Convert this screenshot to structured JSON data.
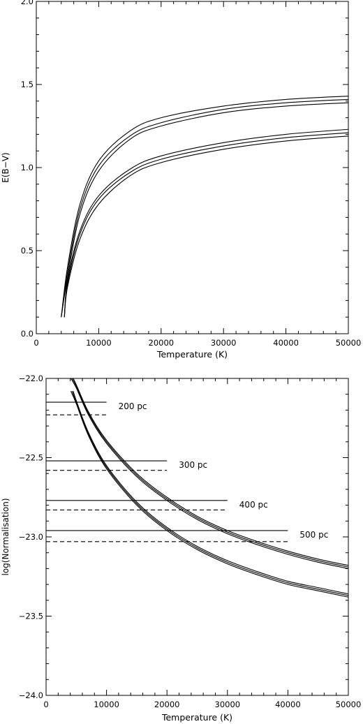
{
  "chart_data": [
    {
      "type": "line",
      "xlabel": "Temperature (K)",
      "ylabel": "E(B−V)",
      "xlim": [
        0,
        50000
      ],
      "ylim": [
        0,
        2.0
      ],
      "xticks": [
        0,
        10000,
        20000,
        30000,
        40000,
        50000
      ],
      "yticks": [
        0.0,
        0.5,
        1.0,
        1.5,
        2.0
      ],
      "xtick_labels": [
        "0",
        "10000",
        "20000",
        "30000",
        "40000",
        "50000"
      ],
      "ytick_labels": [
        "0.0",
        "0.5",
        "1.0",
        "1.5",
        "2.0"
      ],
      "grid": false,
      "series": [
        {
          "style": "solid",
          "x": [
            4000,
            5000,
            7000,
            10000,
            15000,
            20000,
            30000,
            40000,
            50000
          ],
          "y": [
            0.1,
            0.4,
            0.78,
            1.04,
            1.22,
            1.3,
            1.37,
            1.41,
            1.43
          ]
        },
        {
          "style": "solid",
          "x": [
            4000,
            5000,
            7000,
            10000,
            15000,
            20000,
            30000,
            40000,
            50000
          ],
          "y": [
            0.1,
            0.37,
            0.75,
            1.01,
            1.19,
            1.27,
            1.35,
            1.39,
            1.41
          ]
        },
        {
          "style": "solid",
          "x": [
            4000,
            5000,
            7000,
            10000,
            15000,
            20000,
            30000,
            40000,
            50000
          ],
          "y": [
            0.1,
            0.34,
            0.72,
            0.98,
            1.17,
            1.25,
            1.33,
            1.37,
            1.39
          ]
        },
        {
          "style": "solid",
          "x": [
            4500,
            5000,
            7000,
            10000,
            15000,
            20000,
            30000,
            40000,
            50000
          ],
          "y": [
            0.1,
            0.32,
            0.62,
            0.83,
            0.99,
            1.07,
            1.15,
            1.2,
            1.23
          ]
        },
        {
          "style": "solid",
          "x": [
            4500,
            5000,
            7000,
            10000,
            15000,
            20000,
            30000,
            40000,
            50000
          ],
          "y": [
            0.1,
            0.3,
            0.6,
            0.81,
            0.97,
            1.05,
            1.13,
            1.18,
            1.21
          ]
        },
        {
          "style": "solid",
          "x": [
            4500,
            5000,
            7000,
            10000,
            15000,
            20000,
            30000,
            40000,
            50000
          ],
          "y": [
            0.1,
            0.28,
            0.57,
            0.78,
            0.95,
            1.03,
            1.11,
            1.16,
            1.19
          ]
        }
      ]
    },
    {
      "type": "line",
      "xlabel": "Temperature (K)",
      "ylabel": "log(Normalisation)",
      "xlim": [
        0,
        50000
      ],
      "ylim": [
        -24.0,
        -22.0
      ],
      "xticks": [
        0,
        10000,
        20000,
        30000,
        40000,
        50000
      ],
      "yticks": [
        -24.0,
        -23.5,
        -23.0,
        -22.5,
        -22.0
      ],
      "xtick_labels": [
        "0",
        "10000",
        "20000",
        "30000",
        "40000",
        "50000"
      ],
      "ytick_labels": [
        "−24.0",
        "−23.5",
        "−23.0",
        "−22.5",
        "−22.0"
      ],
      "grid": false,
      "series": [
        {
          "style": "solid",
          "x": [
            4500,
            5000,
            7000,
            10000,
            15000,
            20000,
            25000,
            30000,
            35000,
            40000,
            45000,
            50000
          ],
          "y": [
            -22.0,
            -22.04,
            -22.21,
            -22.39,
            -22.6,
            -22.75,
            -22.87,
            -22.96,
            -23.03,
            -23.09,
            -23.14,
            -23.18
          ]
        },
        {
          "style": "solid",
          "x": [
            4300,
            5000,
            7000,
            10000,
            15000,
            20000,
            25000,
            30000,
            35000,
            40000,
            45000,
            50000
          ],
          "y": [
            -22.0,
            -22.05,
            -22.22,
            -22.4,
            -22.61,
            -22.76,
            -22.88,
            -22.97,
            -23.04,
            -23.1,
            -23.15,
            -23.19
          ]
        },
        {
          "style": "solid",
          "x": [
            4100,
            5000,
            7000,
            10000,
            15000,
            20000,
            25000,
            30000,
            35000,
            40000,
            45000,
            50000
          ],
          "y": [
            -22.0,
            -22.06,
            -22.23,
            -22.41,
            -22.62,
            -22.77,
            -22.89,
            -22.98,
            -23.05,
            -23.11,
            -23.16,
            -23.2
          ]
        },
        {
          "style": "solid",
          "x": [
            4500,
            5000,
            7000,
            10000,
            15000,
            20000,
            25000,
            30000,
            35000,
            40000,
            45000,
            50000
          ],
          "y": [
            -22.08,
            -22.14,
            -22.34,
            -22.55,
            -22.78,
            -22.94,
            -23.06,
            -23.15,
            -23.22,
            -23.28,
            -23.32,
            -23.36
          ]
        },
        {
          "style": "solid",
          "x": [
            4300,
            5000,
            7000,
            10000,
            15000,
            20000,
            25000,
            30000,
            35000,
            40000,
            45000,
            50000
          ],
          "y": [
            -22.08,
            -22.15,
            -22.35,
            -22.56,
            -22.79,
            -22.95,
            -23.07,
            -23.16,
            -23.23,
            -23.29,
            -23.33,
            -23.37
          ]
        },
        {
          "style": "solid",
          "x": [
            4100,
            5000,
            7000,
            10000,
            15000,
            20000,
            25000,
            30000,
            35000,
            40000,
            45000,
            50000
          ],
          "y": [
            -22.08,
            -22.16,
            -22.36,
            -22.57,
            -22.8,
            -22.96,
            -23.08,
            -23.17,
            -23.24,
            -23.3,
            -23.34,
            -23.38
          ]
        }
      ],
      "distance_lines": [
        {
          "label": "200 pc",
          "x_end": 10000,
          "solid_y": -22.15,
          "dashed_y": -22.23
        },
        {
          "label": "300 pc",
          "x_end": 20000,
          "solid_y": -22.52,
          "dashed_y": -22.58
        },
        {
          "label": "400 pc",
          "x_end": 30000,
          "solid_y": -22.77,
          "dashed_y": -22.83
        },
        {
          "label": "500 pc",
          "x_end": 40000,
          "solid_y": -22.96,
          "dashed_y": -23.03
        }
      ]
    }
  ]
}
